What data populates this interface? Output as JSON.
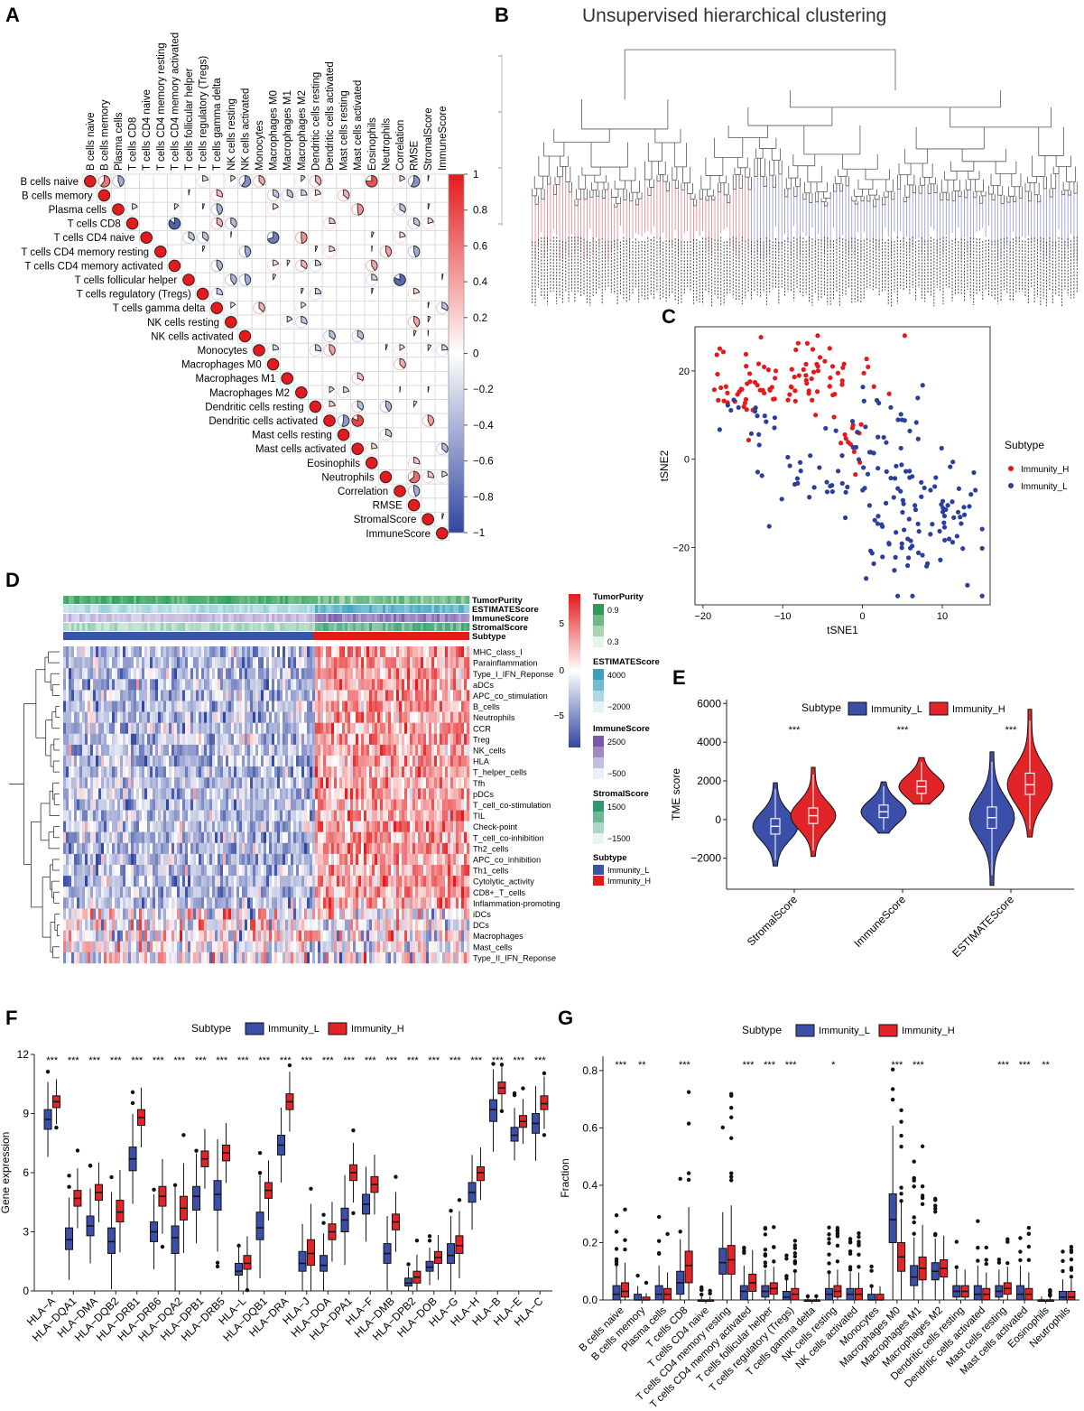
{
  "panels": {
    "A": "A",
    "B": "B",
    "C": "C",
    "D": "D",
    "E": "E",
    "F": "F",
    "G": "G"
  },
  "panel_b": {
    "title": "Unsupervised hierarchical clustering"
  },
  "colors": {
    "red": "#e31a1c",
    "blue": "#2b3e9c",
    "box_blue": "#3b4ea8",
    "box_red": "#e02428",
    "heat_blue": "#3d50a6",
    "heat_red": "#e83232"
  },
  "chart_data": [
    {
      "id": "A",
      "type": "heatmap",
      "title": "",
      "labels": [
        "B cells naive",
        "B cells memory",
        "Plasma cells",
        "T cells CD8",
        "T cells CD4 naive",
        "T cells CD4 memory resting",
        "T cells CD4 memory activated",
        "T cells follicular helper",
        "T cells regulatory (Tregs)",
        "T cells gamma delta",
        "NK cells resting",
        "NK cells activated",
        "Monocytes",
        "Macrophages M0",
        "Macrophages M1",
        "Macrophages M2",
        "Dendritic cells resting",
        "Dendritic cells activated",
        "Mast cells resting",
        "Mast cells activated",
        "Eosinophils",
        "Neutrophils",
        "Correlation",
        "RMSE",
        "StromalScore",
        "ImmuneScore"
      ],
      "colorbar_ticks": [
        "1",
        "0.8",
        "0.6",
        "0.4",
        "0.2",
        "0",
        "−0.2",
        "−0.4",
        "−0.6",
        "−0.8",
        "−1"
      ],
      "colorbar_range": [
        -1,
        1
      ]
    },
    {
      "id": "C",
      "type": "scatter",
      "xlabel": "tSNE1",
      "ylabel": "tSNE2",
      "x_ticks": [
        "−20",
        "−10",
        "0",
        "10"
      ],
      "y_ticks": [
        "20",
        "0",
        "−20"
      ],
      "xlim": [
        -21,
        16
      ],
      "ylim": [
        -33,
        30
      ],
      "legend_title": "Subtype",
      "series": [
        {
          "name": "Immunity_H",
          "color": "#e31a1c"
        },
        {
          "name": "Immunity_L",
          "color": "#2b3e9c"
        }
      ]
    },
    {
      "id": "D",
      "type": "heatmap",
      "rows": [
        "MHC_class_I",
        "Parainflammation",
        "Type_I_IFN_Reponse",
        "aDCs",
        "APC_co_stimulation",
        "B_cells",
        "Neutrophils",
        "CCR",
        "Treg",
        "NK_cells",
        "HLA",
        "T_helper_cells",
        "Tfh",
        "pDCs",
        "T_cell_co-stimulation",
        "TIL",
        "Check-point",
        "T_cell_co-inhibition",
        "Th2_cells",
        "APC_co_inhibition",
        "Th1_cells",
        "Cytolytic_activity",
        "CD8+_T_cells",
        "Inflammation-promoting",
        "iDCs",
        "DCs",
        "Macrophages",
        "Mast_cells",
        "Type_II_IFN_Reponse"
      ],
      "annotations": [
        "TumorPurity",
        "ESTIMATEScore",
        "ImmuneScore",
        "StromalScore",
        "Subtype"
      ],
      "colorbar_ticks": [
        "5",
        "0",
        "−5"
      ],
      "legends": [
        {
          "title": "TumorPurity",
          "ticks": [
            "0.9",
            "0.3"
          ]
        },
        {
          "title": "ESTIMATEScore",
          "ticks": [
            "4000",
            "−2000"
          ]
        },
        {
          "title": "ImmuneScore",
          "ticks": [
            "2500",
            "−500"
          ]
        },
        {
          "title": "StromalScore",
          "ticks": [
            "1500",
            "−1500"
          ]
        },
        {
          "title": "Subtype",
          "ticks": [
            "Immunity_L",
            "Immunity_H"
          ]
        }
      ]
    },
    {
      "id": "E",
      "type": "violin",
      "ylabel": "TME score",
      "categories": [
        "StromalScore",
        "ImmuneScore",
        "ESTIMATEScore"
      ],
      "y_ticks": [
        "6000",
        "4000",
        "2000",
        "0",
        "−2000"
      ],
      "ylim": [
        -3600,
        6200
      ],
      "significance": [
        "***",
        "***",
        "***"
      ],
      "legend_title": "Subtype",
      "series": [
        {
          "name": "Immunity_L",
          "medians": [
            -350,
            400,
            100
          ],
          "q1": [
            -750,
            100,
            -450
          ],
          "q3": [
            50,
            750,
            650
          ],
          "min": [
            -2400,
            -700,
            -3400
          ],
          "max": [
            1900,
            1950,
            3500
          ]
        },
        {
          "name": "Immunity_H",
          "medians": [
            200,
            1700,
            1800
          ],
          "q1": [
            -200,
            1350,
            1300
          ],
          "q3": [
            600,
            2000,
            2400
          ],
          "min": [
            -1900,
            800,
            -900
          ],
          "max": [
            2700,
            3200,
            5700
          ]
        }
      ]
    },
    {
      "id": "F",
      "type": "box",
      "ylabel": "Gene expression",
      "legend_title": "Subtype",
      "legend": [
        "Immunity_L",
        "Immunity_H"
      ],
      "y_ticks": [
        "12",
        "9",
        "6",
        "3",
        "0"
      ],
      "ylim": [
        0,
        12
      ],
      "categories": [
        "HLA−A",
        "HLA−DQA1",
        "HLA−DMA",
        "HLA−DQB2",
        "HLA−DRB1",
        "HLA−DRB6",
        "HLA−DQA2",
        "HLA−DPB1",
        "HLA−DRB5",
        "HLA−L",
        "HLA−DQB1",
        "HLA−DRA",
        "HLA−J",
        "HLA−DOA",
        "HLA−DPA1",
        "HLA−F",
        "HLA−DMB",
        "HLA−DPB2",
        "HLA−DOB",
        "HLA−G",
        "HLA−H",
        "HLA−B",
        "HLA−E",
        "HLA−C"
      ],
      "significance": [
        "***",
        "***",
        "***",
        "***",
        "***",
        "***",
        "***",
        "***",
        "***",
        "***",
        "***",
        "***",
        "***",
        "***",
        "***",
        "***",
        "***",
        "***",
        "***",
        "***",
        "***",
        "***",
        "***",
        "***"
      ],
      "series": [
        {
          "name": "Immunity_L",
          "medians": [
            8.7,
            2.6,
            3.3,
            2.5,
            6.7,
            3.0,
            2.7,
            4.8,
            4.9,
            1.0,
            3.2,
            7.4,
            1.4,
            1.3,
            3.6,
            4.4,
            1.9,
            0.4,
            1.2,
            1.8,
            5.0,
            9.2,
            7.9,
            8.5
          ],
          "q1": [
            8.2,
            2.1,
            2.8,
            1.9,
            6.1,
            2.5,
            1.9,
            4.1,
            4.1,
            0.8,
            2.6,
            6.9,
            1.0,
            1.0,
            3.0,
            3.9,
            1.4,
            0.25,
            1.0,
            1.4,
            4.5,
            8.6,
            7.6,
            8.0
          ],
          "q3": [
            9.2,
            3.2,
            3.8,
            3.2,
            7.3,
            3.5,
            3.3,
            5.3,
            5.6,
            1.4,
            4.0,
            7.9,
            2.0,
            1.8,
            4.2,
            4.9,
            2.4,
            0.65,
            1.5,
            2.4,
            5.5,
            9.7,
            8.3,
            9.0
          ]
        },
        {
          "name": "Immunity_H",
          "medians": [
            9.6,
            4.7,
            5.0,
            4.0,
            8.8,
            4.8,
            4.2,
            6.7,
            7.0,
            1.4,
            5.1,
            9.6,
            1.9,
            3.0,
            6.0,
            5.4,
            3.5,
            0.7,
            1.7,
            2.3,
            6.0,
            10.3,
            8.6,
            9.5
          ],
          "q1": [
            9.3,
            4.3,
            4.6,
            3.5,
            8.4,
            4.3,
            3.6,
            6.3,
            6.6,
            1.1,
            4.7,
            9.2,
            1.3,
            2.6,
            5.6,
            5.0,
            3.1,
            0.4,
            1.4,
            1.9,
            5.6,
            10.0,
            8.3,
            9.2
          ],
          "q3": [
            9.9,
            5.1,
            5.4,
            4.6,
            9.2,
            5.3,
            4.8,
            7.1,
            7.4,
            1.8,
            5.5,
            10.0,
            2.6,
            3.4,
            6.4,
            5.8,
            3.9,
            1.0,
            2.0,
            2.8,
            6.3,
            10.6,
            8.9,
            9.9
          ]
        }
      ]
    },
    {
      "id": "G",
      "type": "box",
      "ylabel": "Fraction",
      "legend_title": "Subtype",
      "legend": [
        "Immunity_L",
        "Immunity_H"
      ],
      "y_ticks": [
        "0.8",
        "0.6",
        "0.4",
        "0.2",
        "0.0"
      ],
      "ylim": [
        0,
        0.85
      ],
      "categories": [
        "B cells naive",
        "B cells memory",
        "Plasma cells",
        "T cells CD8",
        "T cells CD4 naive",
        "T cells CD4 memory resting",
        "T cells CD4 memory activated",
        "T cells follicular helper",
        "T cells regulatory (Tregs)",
        "T cells gamma delta",
        "NK cells resting",
        "NK cells activated",
        "Monocytes",
        "Macrophages M0",
        "Macrophages M1",
        "Macrophages M2",
        "Dendritic cells resting",
        "Dendritic cells activated",
        "Mast cells resting",
        "Mast cells activated",
        "Eosinophils",
        "Neutrophils"
      ],
      "significance": [
        "***",
        "**",
        "",
        "***",
        "",
        "",
        "***",
        "***",
        "***",
        "",
        "*",
        "",
        "",
        "***",
        "***",
        "",
        "",
        "",
        "***",
        "***",
        "**",
        ""
      ],
      "series": [
        {
          "name": "Immunity_L",
          "medians": [
            0.02,
            0.0,
            0.02,
            0.06,
            0.0,
            0.13,
            0.03,
            0.03,
            0.01,
            0.0,
            0.02,
            0.02,
            0.0,
            0.28,
            0.08,
            0.1,
            0.03,
            0.02,
            0.03,
            0.02,
            0.0,
            0.01
          ],
          "q1": [
            0.0,
            0.0,
            0.0,
            0.02,
            0.0,
            0.09,
            0.0,
            0.01,
            0.0,
            0.0,
            0.0,
            0.0,
            0.0,
            0.2,
            0.05,
            0.07,
            0.01,
            0.0,
            0.01,
            0.0,
            0.0,
            0.0
          ],
          "q3": [
            0.05,
            0.02,
            0.05,
            0.1,
            0.0,
            0.18,
            0.05,
            0.05,
            0.03,
            0.0,
            0.04,
            0.04,
            0.02,
            0.37,
            0.12,
            0.13,
            0.05,
            0.05,
            0.05,
            0.05,
            0.0,
            0.03
          ]
        },
        {
          "name": "Immunity_H",
          "medians": [
            0.03,
            0.0,
            0.02,
            0.12,
            0.0,
            0.14,
            0.06,
            0.04,
            0.02,
            0.0,
            0.03,
            0.02,
            0.0,
            0.15,
            0.11,
            0.11,
            0.03,
            0.02,
            0.04,
            0.02,
            0.0,
            0.01
          ],
          "q1": [
            0.01,
            0.0,
            0.0,
            0.06,
            0.0,
            0.09,
            0.03,
            0.02,
            0.0,
            0.0,
            0.01,
            0.0,
            0.0,
            0.1,
            0.07,
            0.08,
            0.01,
            0.0,
            0.02,
            0.0,
            0.0,
            0.0
          ],
          "q3": [
            0.06,
            0.01,
            0.04,
            0.17,
            0.0,
            0.19,
            0.09,
            0.06,
            0.04,
            0.0,
            0.05,
            0.04,
            0.02,
            0.2,
            0.15,
            0.14,
            0.05,
            0.04,
            0.06,
            0.04,
            0.0,
            0.03
          ]
        }
      ]
    }
  ]
}
